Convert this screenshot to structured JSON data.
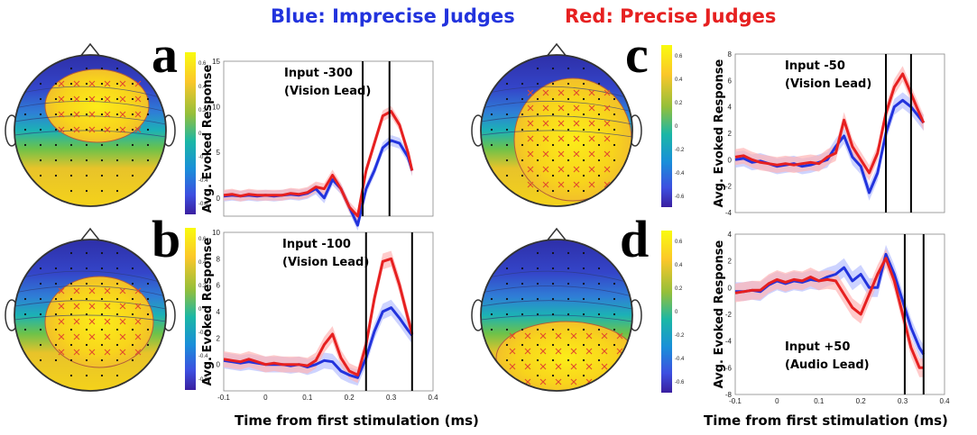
{
  "title_left": "Blue: Imprecise Judges",
  "title_right": "Red: Precise Judges",
  "colors": {
    "blue": "#2233dd",
    "red": "#e62020",
    "blue_band": "#b8c0ff",
    "red_band": "#ffb5b5"
  },
  "xlabel": "Time from first stimulation (ms)",
  "chart_data": [
    {
      "id": "a",
      "type": "line",
      "ylabel": "Avg. Evoked Response",
      "annotation": [
        "Input -300",
        "(Vision Lead)"
      ],
      "xlim": [
        -0.1,
        0.4
      ],
      "ylim": [
        -2,
        15
      ],
      "xticks": [],
      "xtick_labels": [],
      "yticks": [
        15,
        10,
        5,
        0
      ],
      "ytick_labels": [
        "15",
        "10",
        "5",
        "0"
      ],
      "colorbar_ticks": [
        "0.6",
        "0.4",
        "0.2",
        "0",
        "-0.2",
        "-0.4",
        "-0.6"
      ],
      "vlines": [
        0.232,
        0.296
      ],
      "x": [
        -0.1,
        -0.08,
        -0.06,
        -0.04,
        -0.02,
        0,
        0.02,
        0.04,
        0.06,
        0.08,
        0.1,
        0.12,
        0.14,
        0.16,
        0.18,
        0.2,
        0.22,
        0.24,
        0.26,
        0.28,
        0.3,
        0.32,
        0.34,
        0.35
      ],
      "series": [
        {
          "name": "Imprecise",
          "color": "blue",
          "values": [
            0.2,
            0.3,
            0.2,
            0.3,
            0.2,
            0.3,
            0.2,
            0.3,
            0.4,
            0.3,
            0.5,
            1.0,
            0.0,
            2.0,
            1.0,
            -1.0,
            -3.0,
            1.0,
            3.0,
            5.5,
            6.3,
            6.0,
            4.5,
            3.0
          ]
        },
        {
          "name": "Precise",
          "color": "red",
          "values": [
            0.3,
            0.4,
            0.2,
            0.4,
            0.3,
            0.3,
            0.3,
            0.3,
            0.5,
            0.4,
            0.6,
            1.2,
            1.0,
            2.5,
            1.0,
            -1.0,
            -2.0,
            3.0,
            6.0,
            9.0,
            9.5,
            8.0,
            5.0,
            3.0
          ]
        }
      ],
      "band": 0.6
    },
    {
      "id": "b",
      "type": "line",
      "ylabel": "Avg. Evoked Response",
      "annotation": [
        "Input -100",
        "(Vision Lead)"
      ],
      "xlim": [
        -0.1,
        0.4
      ],
      "ylim": [
        -2,
        10
      ],
      "xticks": [
        -0.1,
        0,
        0.1,
        0.2,
        0.3,
        0.4
      ],
      "xtick_labels": [
        "-0.1",
        "0",
        "0.1",
        "0.2",
        "0.3",
        "0.4"
      ],
      "yticks": [
        10,
        8,
        6,
        4,
        2,
        0
      ],
      "ytick_labels": [
        "10",
        "8",
        "6",
        "4",
        "2",
        "0"
      ],
      "colorbar_ticks": [
        "0.6",
        "0.4",
        "0.2",
        "0",
        "-0.2",
        "-0.4",
        "-0.6"
      ],
      "vlines": [
        0.24,
        0.35
      ],
      "x": [
        -0.1,
        -0.08,
        -0.06,
        -0.04,
        -0.02,
        0,
        0.02,
        0.04,
        0.06,
        0.08,
        0.1,
        0.12,
        0.14,
        0.16,
        0.18,
        0.2,
        0.22,
        0.24,
        0.26,
        0.28,
        0.3,
        0.32,
        0.34,
        0.35
      ],
      "series": [
        {
          "name": "Imprecise",
          "color": "blue",
          "values": [
            0.3,
            0.2,
            0.1,
            0.2,
            0.1,
            0.0,
            0.0,
            0.0,
            -0.1,
            0.0,
            -0.2,
            0.0,
            0.3,
            0.2,
            -0.5,
            -0.8,
            -1.0,
            0.5,
            2.5,
            4.0,
            4.3,
            3.5,
            2.6,
            2.2
          ]
        },
        {
          "name": "Precise",
          "color": "red",
          "values": [
            0.4,
            0.3,
            0.2,
            0.4,
            0.2,
            0.0,
            0.1,
            0.0,
            0.0,
            0.0,
            -0.1,
            0.3,
            1.5,
            2.3,
            0.5,
            -0.5,
            -0.8,
            1.5,
            5.0,
            7.8,
            8.0,
            6.0,
            3.5,
            2.3
          ]
        }
      ],
      "band": 0.6
    },
    {
      "id": "c",
      "type": "line",
      "ylabel": "Avg. Evoked Response",
      "annotation": [
        "Input -50",
        "(Vision Lead)"
      ],
      "xlim": [
        -0.1,
        0.4
      ],
      "ylim": [
        -4,
        8
      ],
      "xticks": [],
      "xtick_labels": [],
      "yticks": [
        8,
        6,
        4,
        2,
        0,
        -2,
        -4
      ],
      "ytick_labels": [
        "8",
        "6",
        "4",
        "2",
        "0",
        "-2",
        "-4"
      ],
      "colorbar_ticks": [
        "0.6",
        "0.4",
        "0.2",
        "0",
        "-0.2",
        "-0.4",
        "-0.6"
      ],
      "vlines": [
        0.26,
        0.32
      ],
      "x": [
        -0.1,
        -0.08,
        -0.06,
        -0.04,
        -0.02,
        0,
        0.02,
        0.04,
        0.06,
        0.08,
        0.1,
        0.12,
        0.14,
        0.16,
        0.18,
        0.2,
        0.22,
        0.24,
        0.26,
        0.28,
        0.3,
        0.32,
        0.34,
        0.35
      ],
      "series": [
        {
          "name": "Imprecise",
          "color": "blue",
          "values": [
            0.0,
            0.1,
            -0.2,
            -0.1,
            -0.3,
            -0.5,
            -0.4,
            -0.3,
            -0.5,
            -0.4,
            -0.2,
            0.0,
            1.0,
            1.8,
            0.2,
            -0.5,
            -2.5,
            -1.0,
            2.0,
            4.0,
            4.5,
            4.0,
            3.2,
            2.8
          ]
        },
        {
          "name": "Precise",
          "color": "red",
          "values": [
            0.2,
            0.3,
            0.0,
            -0.2,
            -0.3,
            -0.4,
            -0.3,
            -0.4,
            -0.3,
            -0.2,
            -0.3,
            0.2,
            0.5,
            3.0,
            1.0,
            0.0,
            -1.0,
            0.5,
            3.5,
            5.5,
            6.5,
            5.0,
            3.5,
            2.8
          ]
        }
      ],
      "band": 0.6
    },
    {
      "id": "d",
      "type": "line",
      "ylabel": "Avg. Evoked Response",
      "annotation": [
        "Input +50",
        "(Audio Lead)"
      ],
      "xlim": [
        -0.1,
        0.4
      ],
      "ylim": [
        -8,
        4
      ],
      "xticks": [
        -0.1,
        0,
        0.1,
        0.2,
        0.3,
        0.4
      ],
      "xtick_labels": [
        "-0.1",
        "0",
        "0.1",
        "0.2",
        "0.3",
        "0.4"
      ],
      "yticks": [
        4,
        2,
        0,
        -2,
        -4,
        -6,
        -8
      ],
      "ytick_labels": [
        "4",
        "2",
        "0",
        "-2",
        "-4",
        "-6",
        "-8"
      ],
      "colorbar_ticks": [
        "0.6",
        "0.4",
        "0.2",
        "0",
        "-0.2",
        "-0.4",
        "-0.6"
      ],
      "vlines": [
        0.305,
        0.35
      ],
      "x": [
        -0.1,
        -0.08,
        -0.06,
        -0.04,
        -0.02,
        0,
        0.02,
        0.04,
        0.06,
        0.08,
        0.1,
        0.12,
        0.14,
        0.16,
        0.18,
        0.2,
        0.22,
        0.24,
        0.26,
        0.28,
        0.3,
        0.32,
        0.34,
        0.35
      ],
      "series": [
        {
          "name": "Imprecise",
          "color": "blue",
          "values": [
            -0.3,
            -0.3,
            -0.2,
            -0.3,
            0.2,
            0.5,
            0.3,
            0.5,
            0.4,
            0.6,
            0.5,
            0.8,
            1.0,
            1.5,
            0.5,
            1.0,
            0.0,
            0.0,
            2.5,
            1.0,
            -1.0,
            -3.0,
            -4.5,
            -5.0
          ]
        },
        {
          "name": "Precise",
          "color": "red",
          "values": [
            -0.4,
            -0.3,
            -0.2,
            -0.2,
            0.3,
            0.6,
            0.4,
            0.6,
            0.5,
            0.8,
            0.5,
            0.6,
            0.5,
            -0.5,
            -1.5,
            -2.0,
            -0.5,
            1.0,
            2.2,
            0.5,
            -2.0,
            -4.5,
            -6.0,
            -6.0
          ]
        }
      ],
      "band": 0.7
    }
  ]
}
